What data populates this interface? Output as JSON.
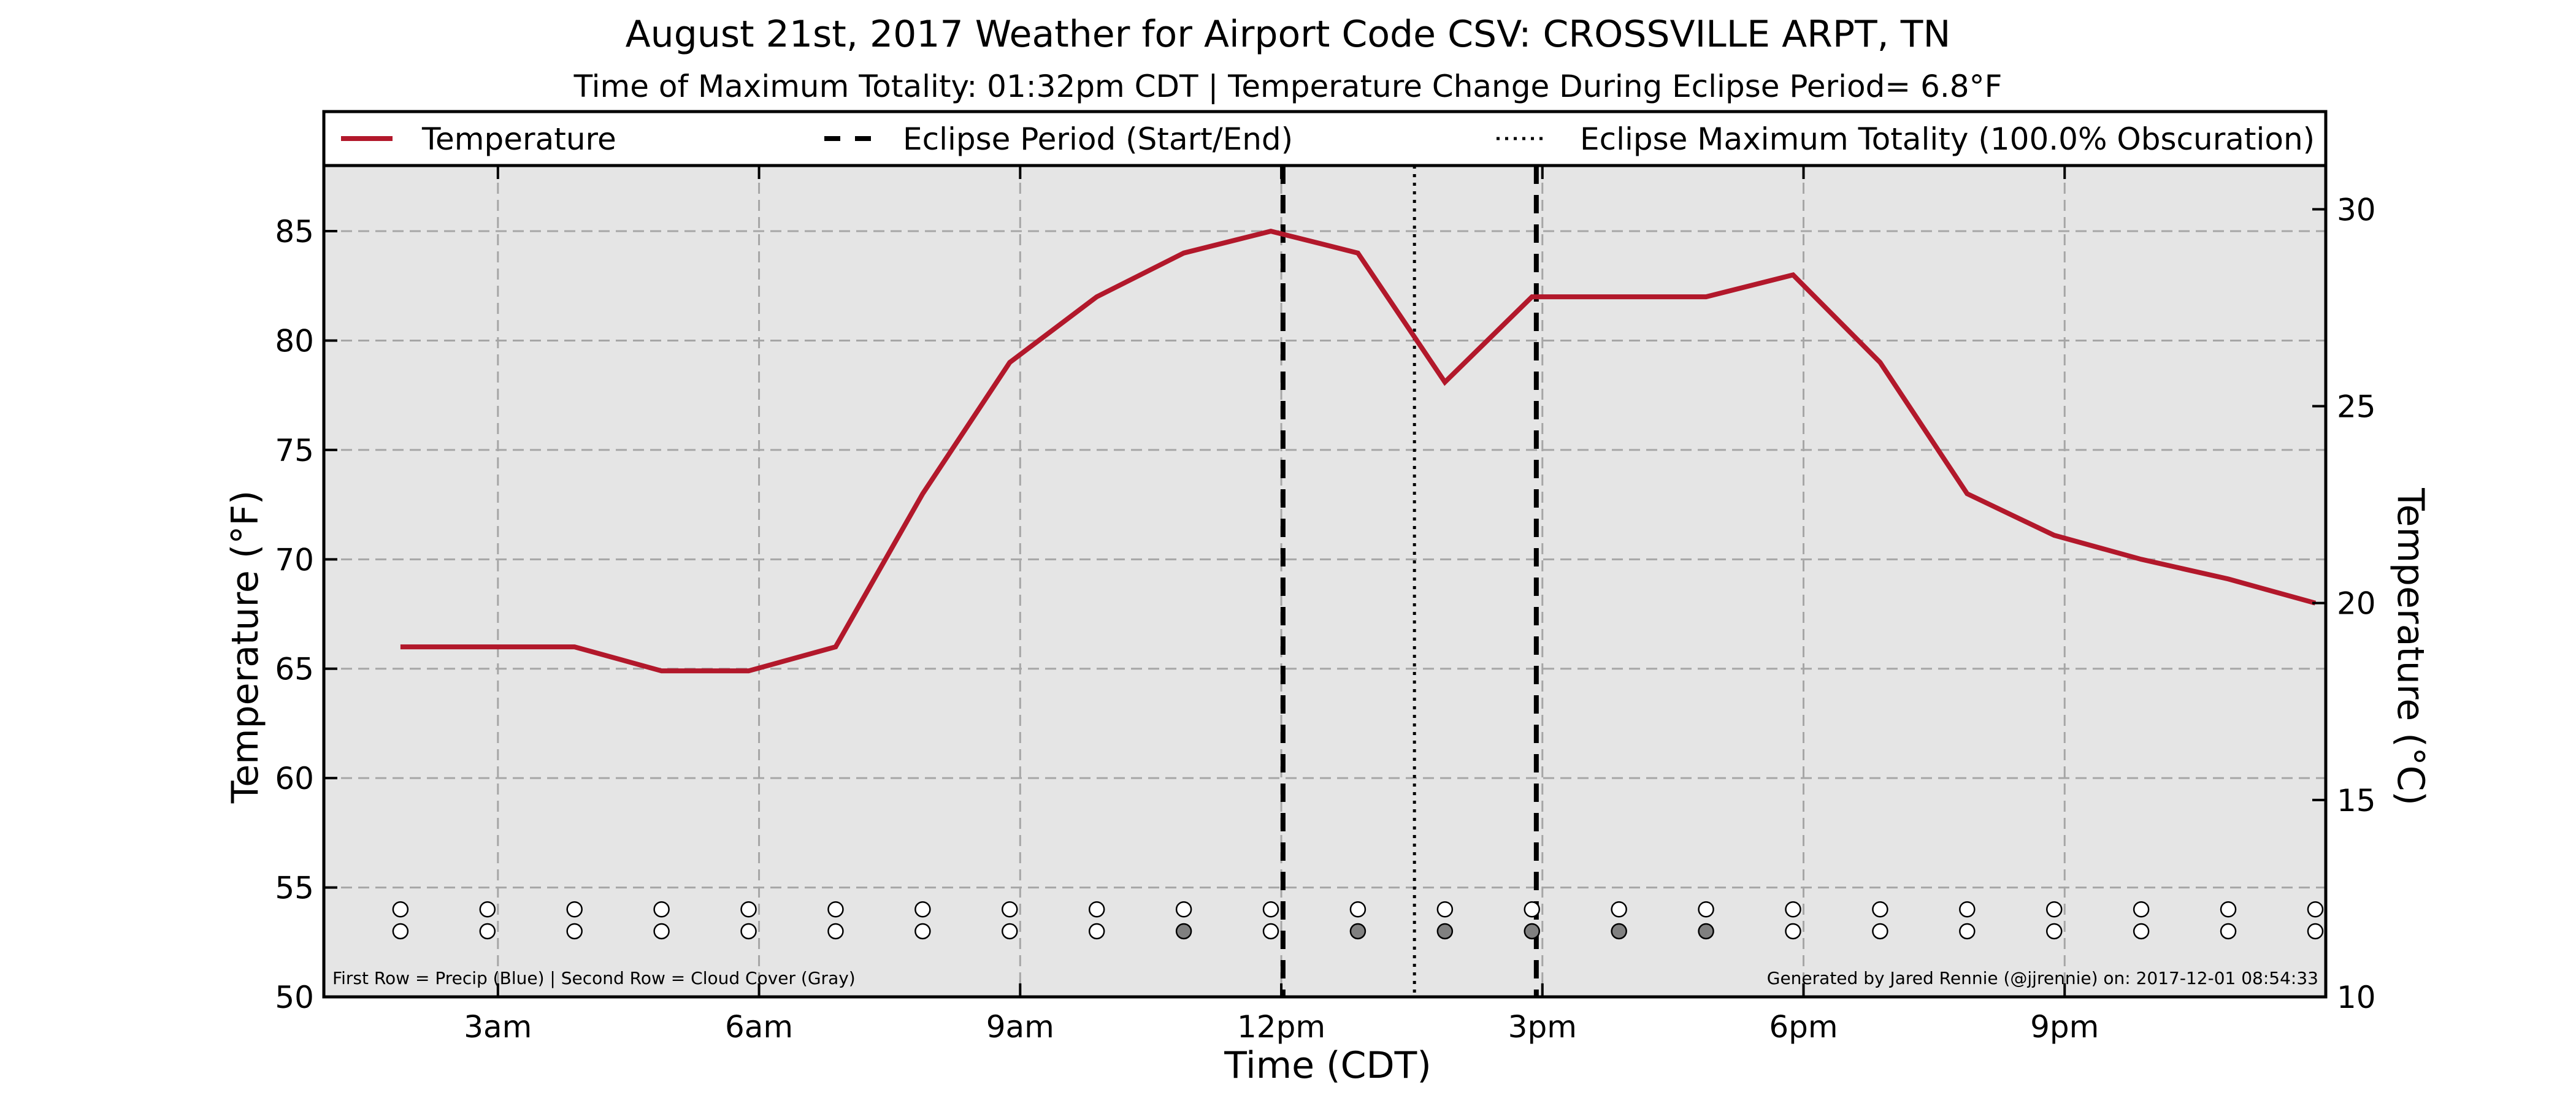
{
  "chart_data": {
    "type": "line",
    "title": "August 21st, 2017 Weather for Airport Code CSV: CROSSVILLE ARPT, TN",
    "subtitle": "Time of Maximum Totality: 01:32pm CDT | Temperature Change During Eclipse Period= 6.8°F",
    "xlabel": "Time (CDT)",
    "ylabel": "Temperature (°F)",
    "y2label": "Temperature (°C)",
    "xlim": [
      1.0,
      24.0
    ],
    "ylim": [
      50,
      88
    ],
    "y2lim": [
      10,
      31.111
    ],
    "x_ticks": [
      3,
      6,
      9,
      12,
      15,
      18,
      21
    ],
    "x_tick_labels": [
      "3am",
      "6am",
      "9am",
      "12pm",
      "3pm",
      "6pm",
      "9pm"
    ],
    "y_ticks": [
      50,
      55,
      60,
      65,
      70,
      75,
      80,
      85
    ],
    "y_tick_labels": [
      "50",
      "55",
      "60",
      "65",
      "70",
      "75",
      "80",
      "85"
    ],
    "y2_ticks": [
      10,
      15,
      20,
      25,
      30
    ],
    "y2_tick_labels": [
      "10",
      "15",
      "20",
      "25",
      "30"
    ],
    "grid": true,
    "legend_position": "top",
    "legend": [
      {
        "label": "Temperature",
        "style": "solid"
      },
      {
        "label": "Eclipse Period (Start/End)",
        "style": "dashed"
      },
      {
        "label": "Eclipse Maximum Totality (100.0% Obscuration)",
        "style": "dotted"
      }
    ],
    "series": [
      {
        "name": "Temperature",
        "color": "#b2182b",
        "x": [
          1.88,
          2.88,
          3.88,
          4.88,
          5.5,
          5.88,
          6.88,
          7.88,
          8.88,
          9.88,
          10.88,
          11.88,
          12.88,
          13.88,
          14.88,
          15.88,
          16.88,
          17.88,
          18.88,
          19.88,
          20.88,
          21.88,
          22.88,
          23.88
        ],
        "values": [
          66,
          66,
          66,
          64.9,
          64.9,
          64.9,
          66,
          73,
          79,
          82,
          84,
          85,
          84,
          78.1,
          82,
          82,
          82,
          83,
          79,
          73,
          71.1,
          70,
          69.1,
          68
        ]
      }
    ],
    "eclipse_start": 12.02,
    "eclipse_end": 14.93,
    "eclipse_max": 13.53,
    "weather_points": {
      "x": [
        1.88,
        2.88,
        3.88,
        4.88,
        5.88,
        6.88,
        7.88,
        8.88,
        9.88,
        10.88,
        11.88,
        12.88,
        13.88,
        14.88,
        15.88,
        16.88,
        17.88,
        18.88,
        19.88,
        20.88,
        21.88,
        22.88,
        23.88
      ],
      "precip_y": 54,
      "cloud_y": 53,
      "precip_colors": [
        "#ffffff",
        "#ffffff",
        "#ffffff",
        "#ffffff",
        "#ffffff",
        "#ffffff",
        "#ffffff",
        "#ffffff",
        "#ffffff",
        "#ffffff",
        "#ffffff",
        "#ffffff",
        "#ffffff",
        "#ffffff",
        "#ffffff",
        "#ffffff",
        "#ffffff",
        "#ffffff",
        "#ffffff",
        "#ffffff",
        "#ffffff",
        "#ffffff",
        "#ffffff"
      ],
      "cloud_colors": [
        "#ffffff",
        "#ffffff",
        "#ffffff",
        "#ffffff",
        "#ffffff",
        "#ffffff",
        "#ffffff",
        "#ffffff",
        "#ffffff",
        "#808080",
        "#ffffff",
        "#808080",
        "#808080",
        "#808080",
        "#808080",
        "#808080",
        "#ffffff",
        "#ffffff",
        "#ffffff",
        "#ffffff",
        "#ffffff",
        "#ffffff",
        "#ffffff"
      ]
    },
    "footnote_left": "First Row = Precip (Blue) | Second Row = Cloud Cover (Gray)",
    "footnote_right": "Generated by Jared Rennie (@jjrennie) on: 2017-12-01 08:54:33",
    "colors": {
      "plot_bg": "#e5e5e5",
      "grid": "#a6a6a6",
      "temperature_line": "#b2182b",
      "eclipse_lines": "#000000"
    }
  }
}
